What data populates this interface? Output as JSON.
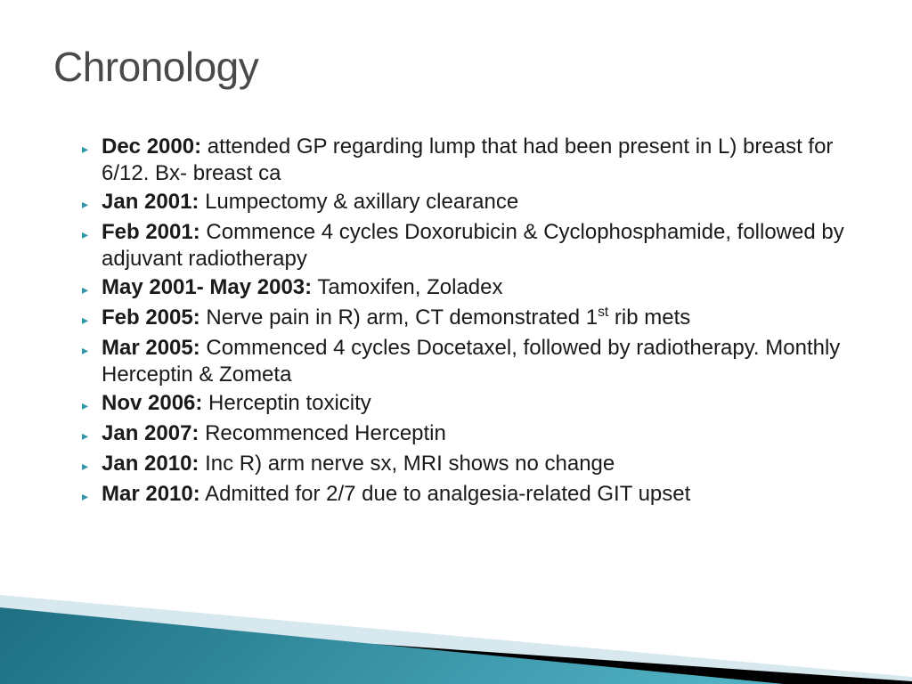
{
  "title": "Chronology",
  "bullet_color": "#2f95a6",
  "title_color": "#4a4a4a",
  "text_color": "#1a1a1a",
  "title_fontsize": 46,
  "text_fontsize": 24,
  "line_height": 30,
  "items": [
    {
      "date": "Dec 2000",
      "sep": ": ",
      "detail_html": "attended GP regarding lump that had been present in L) breast for 6/12. Bx- breast ca"
    },
    {
      "date": "Jan 2001",
      "sep": ": ",
      "detail_html": "Lumpectomy & axillary clearance"
    },
    {
      "date": "Feb 2001",
      "sep": ": ",
      "detail_html": "Commence 4 cycles Doxorubicin & Cyclophosphamide, followed by adjuvant radiotherapy"
    },
    {
      "date": "May 2001- May 2003",
      "sep": ": ",
      "detail_html": "Tamoxifen, Zoladex"
    },
    {
      "date": "Feb 2005",
      "sep": ": ",
      "detail_html": "Nerve pain in R) arm, CT demonstrated 1<sup>st</sup> rib mets"
    },
    {
      "date": "Mar 2005",
      "sep": ": ",
      "detail_html": "Commenced 4 cycles Docetaxel, followed by radiotherapy. Monthly Herceptin & Zometa"
    },
    {
      "date": "Nov 2006",
      "sep": ": ",
      "detail_html": "Herceptin toxicity"
    },
    {
      "date": "Jan 2007",
      "sep": ": ",
      "detail_html": "Recommenced Herceptin"
    },
    {
      "date": "Jan 2010",
      "sep": ": ",
      "detail_html": "Inc R) arm nerve sx, MRI shows no change"
    },
    {
      "date": "Mar 2010",
      "sep": ": ",
      "detail_html": "Admitted for 2/7 due to analgesia-related GIT upset"
    }
  ],
  "decor": {
    "teal_dark": "#1e6f82",
    "teal_light": "#4fb0c2",
    "pale": "#d7e8ee",
    "black": "#000000"
  }
}
